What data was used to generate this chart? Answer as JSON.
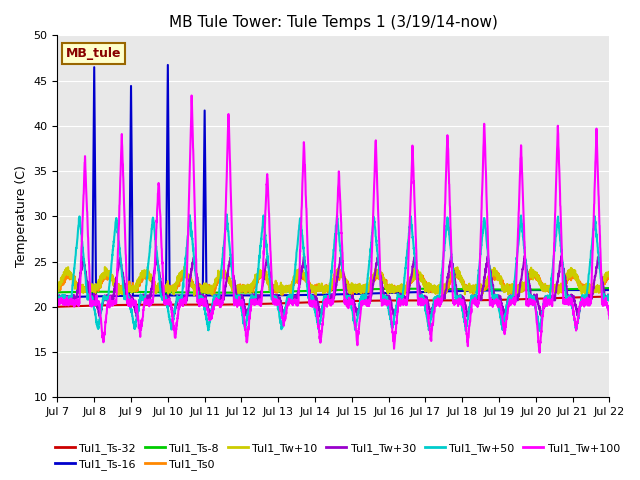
{
  "title": "MB Tule Tower: Tule Temps 1 (3/19/14-now)",
  "ylabel": "Temperature (C)",
  "xlim": [
    0,
    15
  ],
  "ylim": [
    10,
    50
  ],
  "yticks": [
    10,
    15,
    20,
    25,
    30,
    35,
    40,
    45,
    50
  ],
  "xtick_labels": [
    "Jul 7",
    "Jul 8",
    "Jul 9",
    "Jul 10",
    "Jul 11",
    "Jul 12",
    "Jul 13",
    "Jul 14",
    "Jul 15",
    "Jul 16",
    "Jul 17",
    "Jul 18",
    "Jul 19",
    "Jul 20",
    "Jul 21",
    "Jul 22"
  ],
  "bg_color": "#e8e8e8",
  "series": {
    "Tul1_Ts-32": {
      "color": "#cc0000",
      "lw": 1.5
    },
    "Tul1_Ts-16": {
      "color": "#0000cc",
      "lw": 1.5
    },
    "Tul1_Ts-8": {
      "color": "#00cc00",
      "lw": 1.5
    },
    "Tul1_Ts0": {
      "color": "#ff8800",
      "lw": 1.5
    },
    "Tul1_Tw+10": {
      "color": "#cccc00",
      "lw": 1.5
    },
    "Tul1_Tw+30": {
      "color": "#9900cc",
      "lw": 1.5
    },
    "Tul1_Tw+50": {
      "color": "#00cccc",
      "lw": 1.5
    },
    "Tul1_Tw+100": {
      "color": "#ff00ff",
      "lw": 1.5
    }
  },
  "legend_label": "MB_tule",
  "legend_bg": "#ffffcc",
  "legend_border": "#996600",
  "legend_items": [
    [
      "Tul1_Ts-32",
      "#cc0000"
    ],
    [
      "Tul1_Ts-16",
      "#0000cc"
    ],
    [
      "Tul1_Ts-8",
      "#00cc00"
    ],
    [
      "Tul1_Ts0",
      "#ff8800"
    ],
    [
      "Tul1_Tw+10",
      "#cccc00"
    ],
    [
      "Tul1_Tw+30",
      "#9900cc"
    ],
    [
      "Tul1_Tw+50",
      "#00cccc"
    ],
    [
      "Tul1_Tw+100",
      "#ff00ff"
    ]
  ]
}
